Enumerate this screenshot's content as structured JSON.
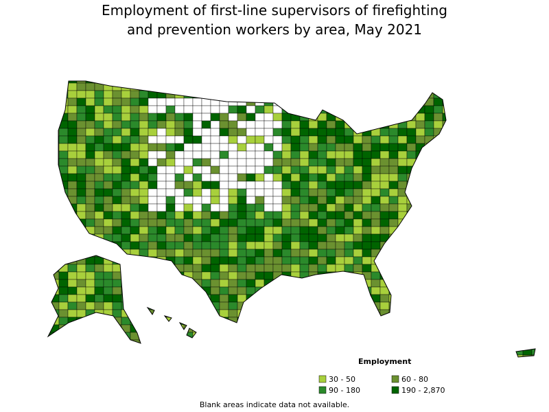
{
  "title": [
    "Employment of first-line supervisors of firefighting",
    "and prevention workers by area, May 2021"
  ],
  "legend": {
    "title": "Employment",
    "items": [
      {
        "label": "30 - 50",
        "color": "#a8d03c"
      },
      {
        "label": "60 - 80",
        "color": "#6b9130"
      },
      {
        "label": "90 - 180",
        "color": "#2b8a2b"
      },
      {
        "label": "190 - 2,870",
        "color": "#006400"
      }
    ]
  },
  "note": "Blank areas indicate data not available."
}
